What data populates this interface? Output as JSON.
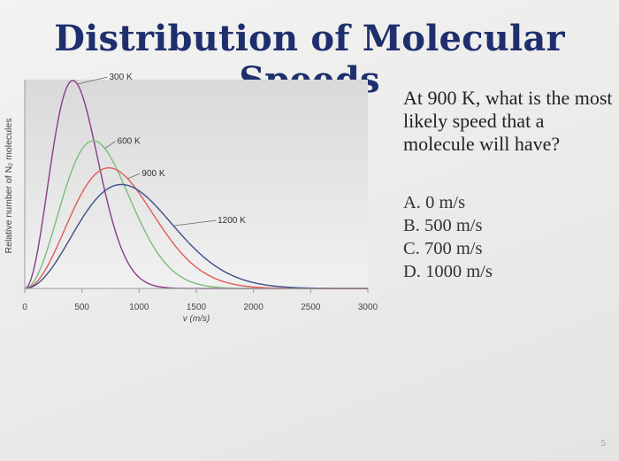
{
  "slide": {
    "title": "Distribution of Molecular Speeds",
    "question": "At 900 K, what is the most likely speed that a molecule will have?",
    "options": [
      {
        "letter": "A.",
        "text": "0 m/s"
      },
      {
        "letter": "B.",
        "text": "500 m/s"
      },
      {
        "letter": "C.",
        "text": "700 m/s"
      },
      {
        "letter": "D.",
        "text": "1000 m/s"
      }
    ],
    "page_number": "5"
  },
  "chart_data": {
    "type": "line",
    "title": "",
    "xlabel": "v (m/s)",
    "ylabel": "Relative number of N₂ molecules",
    "xlim": [
      0,
      3000
    ],
    "x_ticks": [
      0,
      500,
      1000,
      1500,
      2000,
      2500,
      3000
    ],
    "grid": false,
    "y_tick_labels": false,
    "series": [
      {
        "name": "300 K",
        "temperature_K": 300,
        "color": "#8a3a8c",
        "peak_speed": 420,
        "relative_peak_height": 1.0
      },
      {
        "name": "600 K",
        "temperature_K": 600,
        "color": "#7dbb7d",
        "peak_speed": 600,
        "relative_peak_height": 0.71
      },
      {
        "name": "900 K",
        "temperature_K": 900,
        "color": "#e05a5a",
        "peak_speed": 735,
        "relative_peak_height": 0.58
      },
      {
        "name": "1200 K",
        "temperature_K": 1200,
        "color": "#3d4f8c",
        "peak_speed": 845,
        "relative_peak_height": 0.5
      }
    ]
  }
}
